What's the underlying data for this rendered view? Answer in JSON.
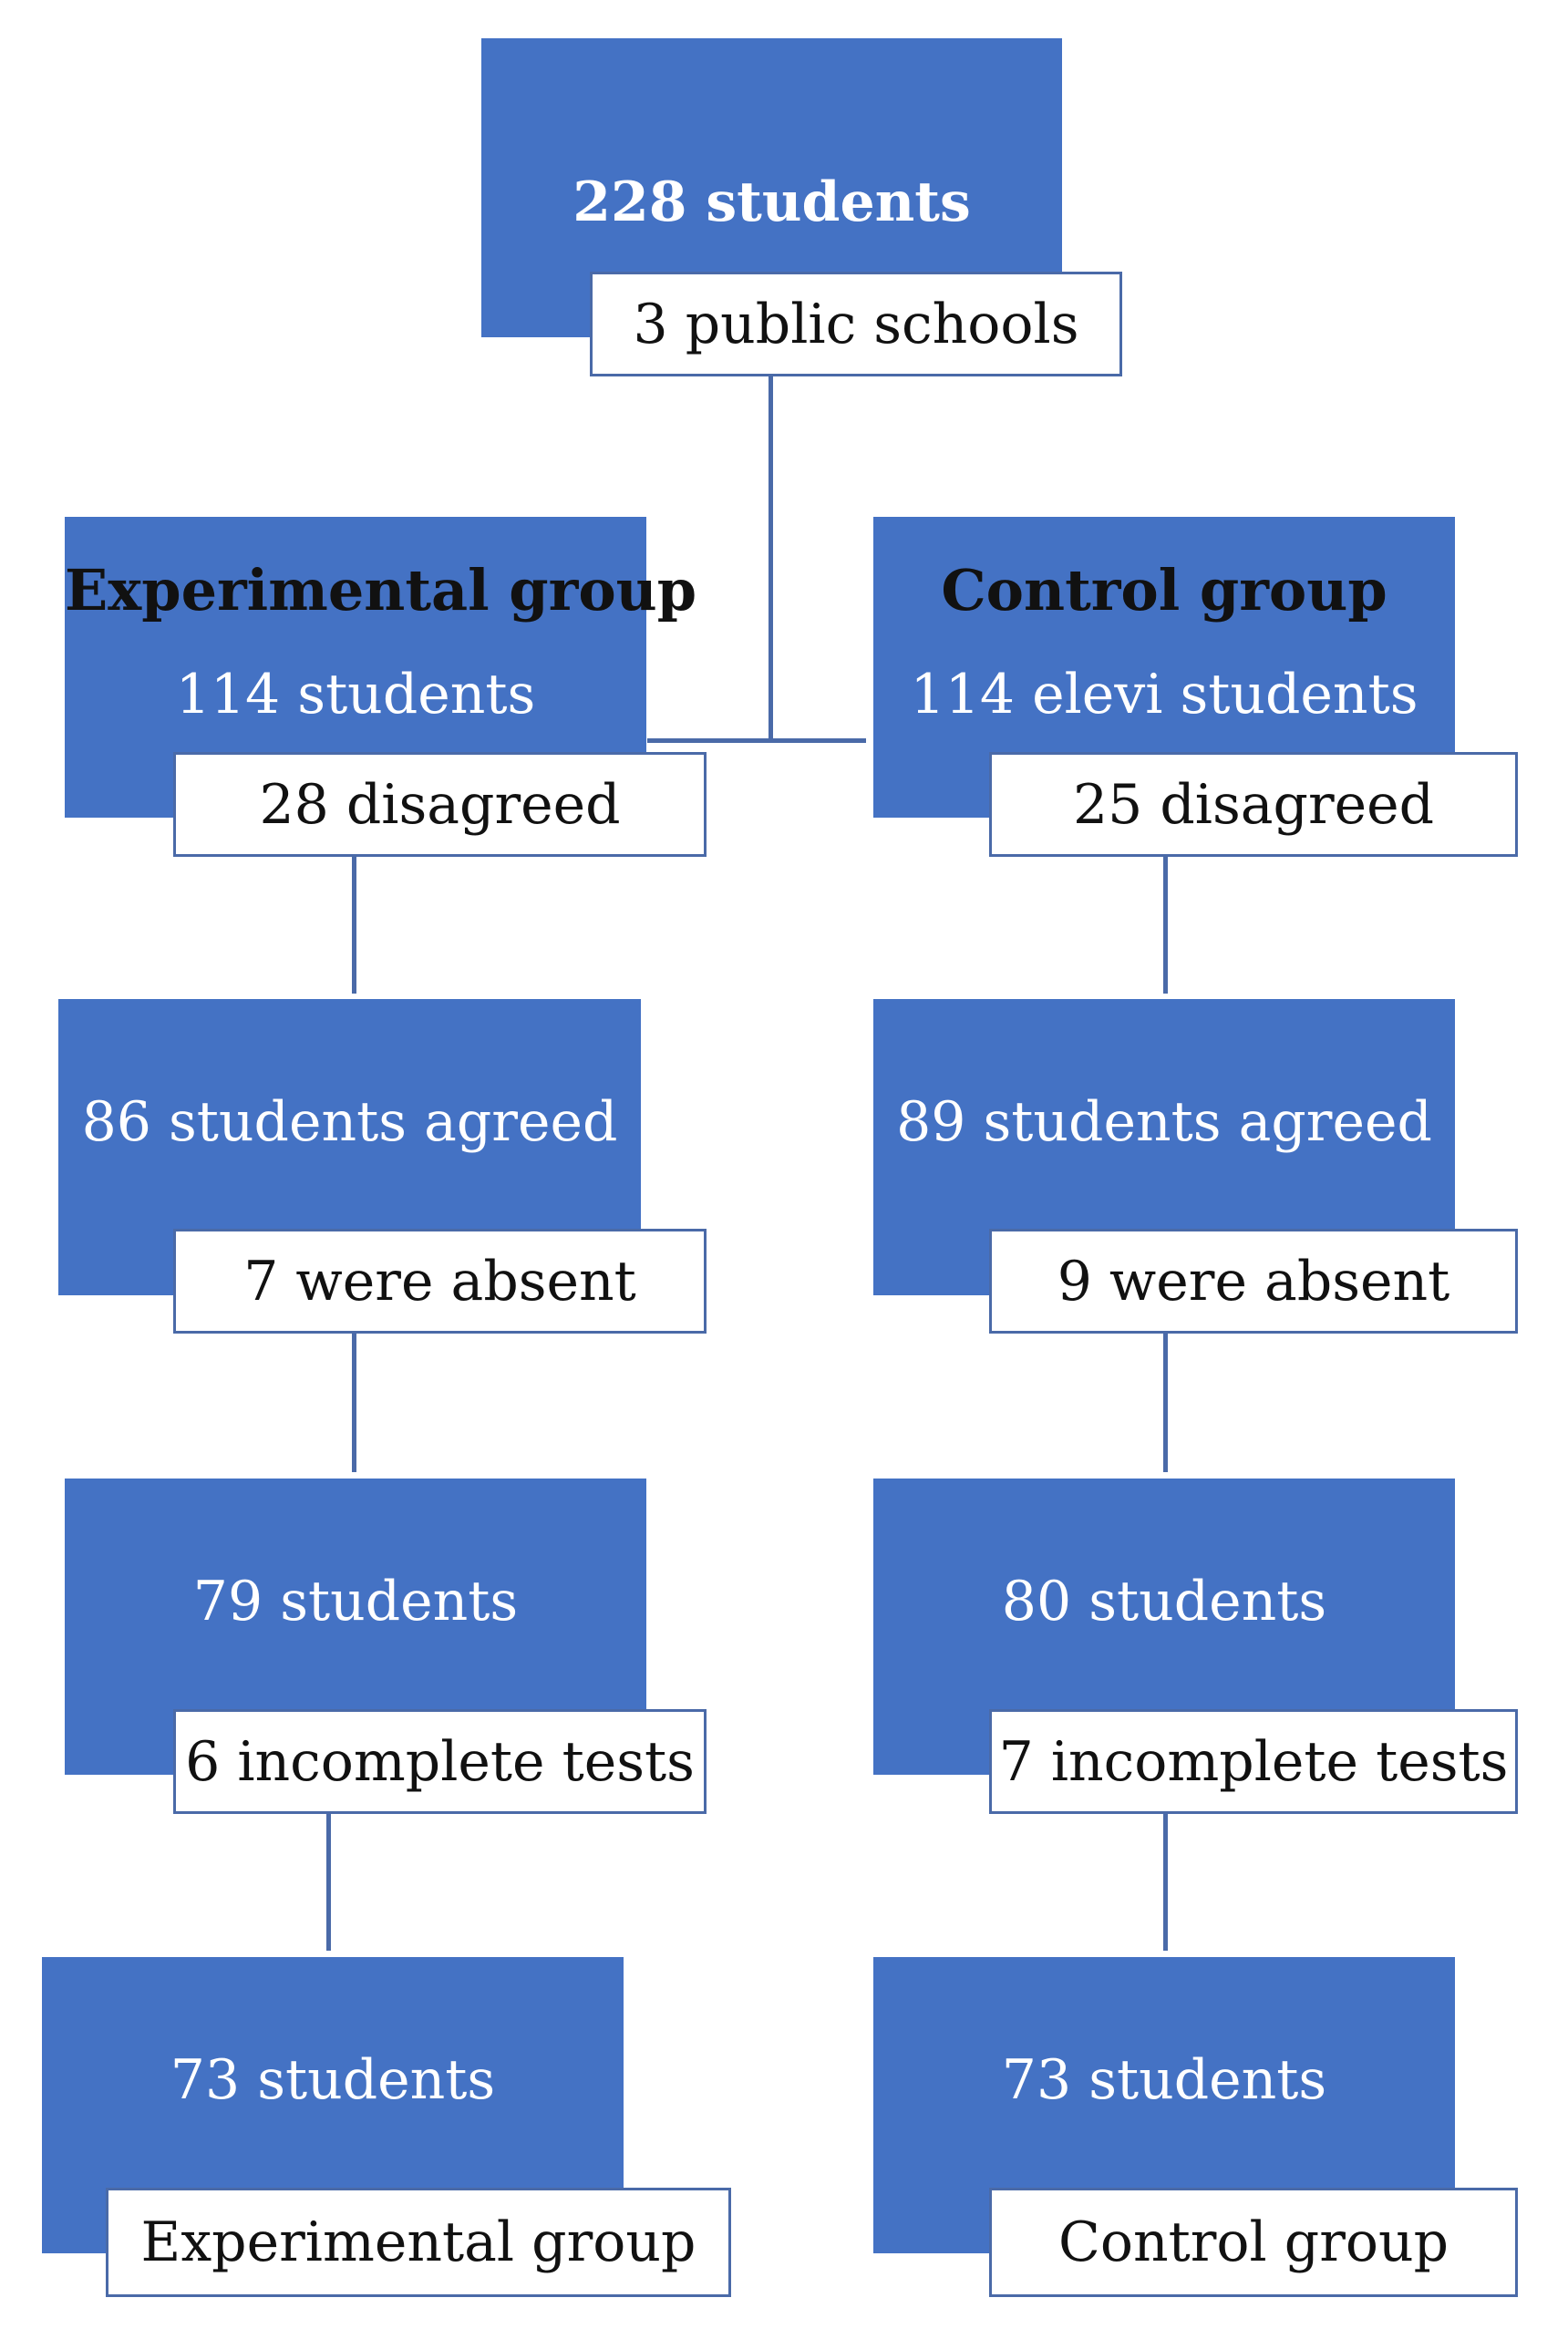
{
  "top": {
    "main": "228 students",
    "label": "3 public schools"
  },
  "experimental": {
    "heading": "Experimental group",
    "count": "114 students",
    "excluded": "28 disagreed",
    "agreed": "86 students agreed",
    "absent": "7 were absent",
    "after_absent": "79 students",
    "incomplete": "6 incomplete tests",
    "final": "73 students",
    "final_label": "Experimental group"
  },
  "control": {
    "heading": "Control group",
    "count": "114 elevi students",
    "excluded": "25 disagreed",
    "agreed": "89 students agreed",
    "absent": "9 were absent",
    "after_absent": "80 students",
    "incomplete": "7 incomplete tests",
    "final": "73 students",
    "final_label": "Control group"
  },
  "colors": {
    "box_fill": "#4472c4",
    "connector": "#4a6aa8",
    "label_fill": "#ffffff"
  }
}
